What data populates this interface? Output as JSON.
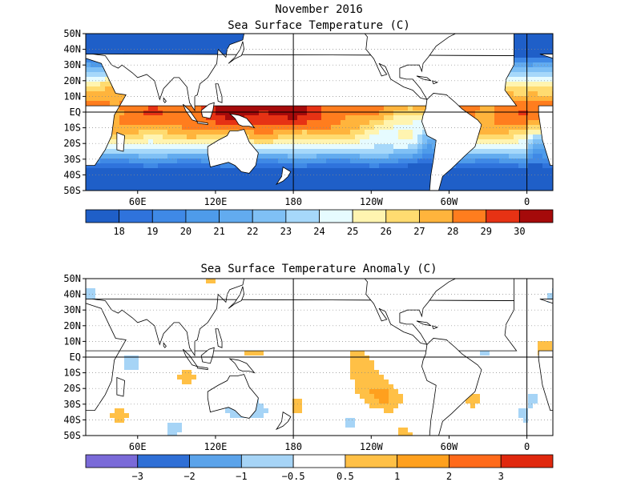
{
  "header": {
    "date": "November 2016"
  },
  "chart_data": [
    {
      "type": "heatmap",
      "title": "Sea Surface Temperature (C)",
      "lat_ticks": [
        "50N",
        "40N",
        "30N",
        "20N",
        "10N",
        "EQ",
        "10S",
        "20S",
        "30S",
        "40S",
        "50S"
      ],
      "lon_ticks": [
        "60E",
        "120E",
        "180",
        "120W",
        "60W",
        "0"
      ],
      "colorbar_labels": [
        "18",
        "19",
        "20",
        "21",
        "22",
        "23",
        "24",
        "25",
        "26",
        "27",
        "28",
        "29",
        "30"
      ],
      "colorbar_colors": [
        "#1f5fc8",
        "#2f73dc",
        "#3f89e6",
        "#4e9bea",
        "#62abef",
        "#7fc0f5",
        "#a6d8fa",
        "#e6fbff",
        "#fff4b0",
        "#ffdb70",
        "#ffb43c",
        "#ff7d1e",
        "#e63214",
        "#a50a0a"
      ]
    },
    {
      "type": "heatmap",
      "title": "Sea Surface Temperature Anomaly (C)",
      "lat_ticks": [
        "50N",
        "40N",
        "30N",
        "20N",
        "10N",
        "EQ",
        "10S",
        "20S",
        "30S",
        "40S",
        "50S"
      ],
      "lon_ticks": [
        "60E",
        "120E",
        "180",
        "120W",
        "60W",
        "0"
      ],
      "colorbar_labels": [
        "−3",
        "−2",
        "−1",
        "−0.5",
        "0.5",
        "1",
        "2",
        "3"
      ],
      "colorbar_colors": [
        "#7a6ad8",
        "#2f6fd6",
        "#5ba3ea",
        "#a6d4f6",
        "#ffffff",
        "#ffc046",
        "#ffa01e",
        "#ff6a1a",
        "#e0280e"
      ]
    }
  ]
}
